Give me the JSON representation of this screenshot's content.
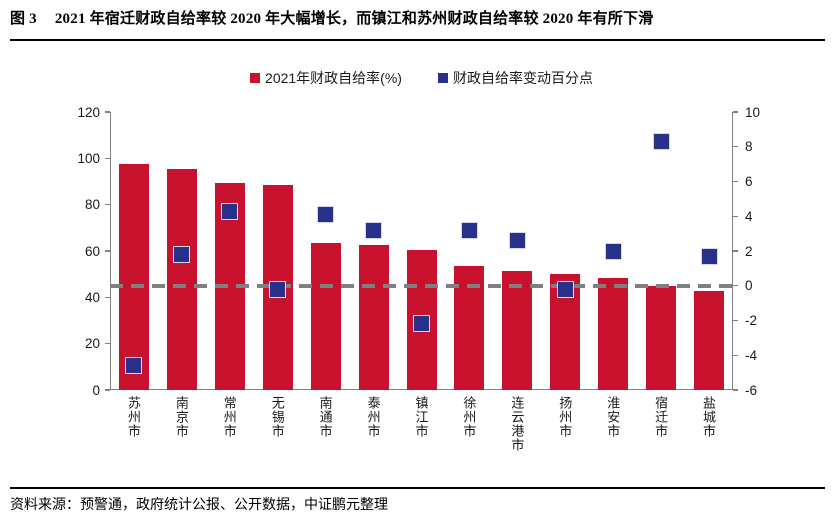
{
  "header": {
    "figure_label": "图 3",
    "title": "2021 年宿迁财政自给率较 2020 年大幅增长，而镇江和苏州财政自给率较 2020 年有所下滑"
  },
  "footer": {
    "source": "资料来源：预警通，政府统计公报、公开数据，中证鹏元整理"
  },
  "colors": {
    "bar": "#c8122d",
    "marker": "#27318b",
    "marker_border": "#d5d8ea",
    "axis": "#808080",
    "zero_line": "#7f7f7f",
    "text": "#1a1a1a"
  },
  "chart_data": {
    "type": "bar",
    "subtype": "bar-with-scatter-secondary-axis",
    "title": "2021 年宿迁财政自给率较 2020 年大幅增长，而镇江和苏州财政自给率较 2020 年有所下滑",
    "categories": [
      "苏州市",
      "南京市",
      "常州市",
      "无锡市",
      "南通市",
      "泰州市",
      "镇江市",
      "徐州市",
      "连云港市",
      "扬州市",
      "淮安市",
      "宿迁市",
      "盐城市"
    ],
    "series": [
      {
        "name": "2021年财政自给率(%)",
        "type": "bar",
        "axis": "left",
        "color": "#c8122d",
        "values": [
          97.4,
          95.5,
          89.2,
          88.3,
          63.3,
          62.8,
          60.4,
          53.6,
          51.4,
          50.1,
          48.2,
          45.0,
          42.7
        ]
      },
      {
        "name": "财政自给率变动百分点",
        "type": "scatter-square",
        "axis": "right",
        "color": "#27318b",
        "values": [
          -4.6,
          1.8,
          4.3,
          -0.2,
          4.1,
          3.2,
          -2.2,
          3.2,
          2.6,
          -0.2,
          2.0,
          8.3,
          1.7
        ]
      }
    ],
    "left_axis": {
      "min": 0,
      "max": 120,
      "ticks": [
        120,
        100,
        80,
        60,
        40,
        20,
        0
      ]
    },
    "right_axis": {
      "min": -6,
      "max": 10,
      "ticks": [
        10,
        8,
        6,
        4,
        2,
        0,
        -2,
        -4,
        -6
      ]
    },
    "zero_line": {
      "axis": "right",
      "value": 0,
      "style": "dashed",
      "color": "#7f7f7f"
    },
    "grid": false,
    "legend_position": "top-center"
  }
}
